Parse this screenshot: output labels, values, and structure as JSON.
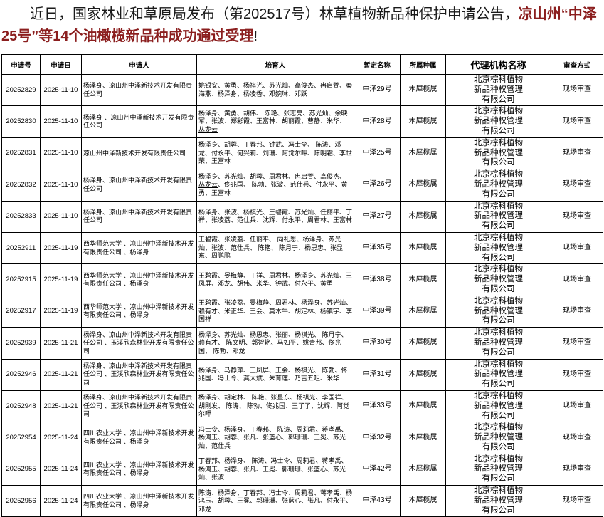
{
  "heading": {
    "black_prefix": "近日，国家林业和草原局发布（第202517号）林草植物新品种保护申请公告，",
    "red_text": "凉山州“中泽25号”等14个油橄榄新品种成功通过受理",
    "black_suffix": "!"
  },
  "table": {
    "columns": [
      "申请号",
      "申请日",
      "申请人",
      "培育人",
      "暂定名称",
      "所属种属",
      "代理机构名称",
      "审查方式"
    ],
    "underlined_names": [
      "丛龙云"
    ],
    "rows": [
      {
        "app_no": "20252829",
        "date": "2025-11-10",
        "applicant": "杨泽身、凉山州中泽新技术开发有限责任公司",
        "breeders": "姚银安、黄勇、杨祺光、苏光灿、高俊杰、冉启萱、秦海燕、杨泽身、杨凌香、邓婉琳、邓跃",
        "name": "中泽29号",
        "genus": "木犀榄属",
        "agency": "北京棕科植物\n新品种权管理\n有限公司",
        "method": "现场审查"
      },
      {
        "app_no": "20252830",
        "date": "2025-11-10",
        "applicant": "杨泽身 、凉山州中泽新技术开发有限责任公司",
        "breeders": "杨泽身、黄勇、胡伟、 陈艳、张志亮、苏光灿、余映军、张波、郑彩霞、王富林、胡丽霞、曹静、米华、丛龙云",
        "name": "中泽28号",
        "genus": "木犀榄属",
        "agency": "北京棕科植物\n新品种权管理\n有限公司",
        "method": "现场审查"
      },
      {
        "app_no": "20252831",
        "date": "2025-11-10",
        "applicant": "凉山州中泽新技术开发有限责任公司",
        "breeders": "杨泽身、胡蓉、丁春邦、钟武、冯士令、 陈涛、邓龙、付永平、何兴莉、刘珊、阿觉尔呷、陈明霜、李世荣、王富林",
        "name": "中泽25号",
        "genus": "木犀榄属",
        "agency": "北京棕科植物\n新品种权管理\n有限公司",
        "method": "现场审查"
      },
      {
        "app_no": "20252832",
        "date": "2025-11-10",
        "applicant": "杨泽身、凉山州中泽新技术开发有限责任公司",
        "breeders": "杨泽身、苏光灿、胡蓉、周君林、冉启萱、高俊杰、丛龙云、佟兆国、 陈勃、张波、范仕兵、付永平、黄勇、王富林",
        "name": "中泽26号",
        "genus": "木犀榄属",
        "agency": "北京棕科植物\n新品种权管理\n有限公司",
        "method": "现场审查"
      },
      {
        "app_no": "20252833",
        "date": "2025-11-10",
        "applicant": "杨泽身、凉山州中泽新技术开发有限责任公司",
        "breeders": "杨泽身、张波、杨祺光、王碧霞、苏光灿、任丽平、丁祥、张凌荔、范仕兵、沈辉、付永平、周君林、王富林",
        "name": "中泽27号",
        "genus": "木犀榄属",
        "agency": "北京棕科植物\n新品种权管理\n有限公司",
        "method": "现场审查"
      },
      {
        "app_no": "20252911",
        "date": "2025-11-19",
        "applicant": "西华师范大学 、凉山州中泽新技术开发有限责任公司 、杨泽身",
        "breeders": "王碧霞、张凌荔、任丽平、 向礼恩、杨泽身、苏光灿、张波、范仕兵、 陈艳、 陈月宁、杨思忠、张显东、周鹏鹏",
        "name": "中泽35号",
        "genus": "木犀榄属",
        "agency": "北京棕科植物\n新品种权管理\n有限公司",
        "method": "现场审查"
      },
      {
        "app_no": "20252915",
        "date": "2025-11-19",
        "applicant": "西华师范大学 、凉山州中泽新技术开发有限责任公司 、杨泽身",
        "breeders": "王碧霞、晏梅静、丁祥、周君林、杨泽身、苏光灿、王凤屏、邓龙、胡伟、米华、钟武、付永平、黄勇",
        "name": "中泽38号",
        "genus": "木犀榄属",
        "agency": "北京棕科植物\n新品种权管理\n有限公司",
        "method": "现场审查"
      },
      {
        "app_no": "20252917",
        "date": "2025-11-19",
        "applicant": "西华师范大学 、凉山州中泽新技术开发有限责任公司 、杨泽身",
        "breeders": "王碧霞、张凌荔、晏梅静、周君林、杨泽身、苏光灿、赖有才、米正华、王会、莫木牛、胡定林、杨镇宇、李国祥",
        "name": "中泽39号",
        "genus": "木犀榄属",
        "agency": "北京棕科植物\n新品种权管理\n有限公司",
        "method": "现场审查"
      },
      {
        "app_no": "20252939",
        "date": "2025-11-21",
        "applicant": "杨泽身、凉山州中泽新技术开发有限责任公司 、玉溪欣森林业开发有限责任公司",
        "breeders": "杨泽身、苏光灿、杨思忠、张丽、杨祺光、 陈月宁、赖有才、 陈文明、郭智艳、马如平、姚青邦、佟兆国、 陈勃、邓龙",
        "name": "中泽30号",
        "genus": "木犀榄属",
        "agency": "北京棕科植物\n新品种权管理\n有限公司",
        "method": "现场审查"
      },
      {
        "app_no": "20252946",
        "date": "2025-11-21",
        "applicant": "杨泽身、凉山州中泽新技术开发有限责任公司 、玉溪欣森林业开发有限责任公司",
        "breeders": "杨泽身、马静萍、王凤屏、王会、杨祺光、 陈勃、佟兆国、冯士令、龚大斌、朱育莲、乃吉五咀、米华",
        "name": "中泽31号",
        "genus": "木犀榄属",
        "agency": "北京棕科植物\n新品种权管理\n有限公司",
        "method": "现场审查"
      },
      {
        "app_no": "20252948",
        "date": "2025-11-21",
        "applicant": "杨泽身、凉山州中泽新技术开发有限责任公司 、玉溪欣森林业开发有限责任公司",
        "breeders": "杨泽身、胡定林、 陈艳、张显东、杨祺光、李国祥、胡刚发、 陈涛、 陈勃、佟兆国、王了了、沈辉、阿觉尔呷",
        "name": "中泽33号",
        "genus": "木犀榄属",
        "agency": "北京棕科植物\n新品种权管理\n有限公司",
        "method": "现场审查"
      },
      {
        "app_no": "20252954",
        "date": "2025-11-24",
        "applicant": "四川农业大学 、凉山州中泽新技术开发有限责任公司 、杨泽身",
        "breeders": "冯士令、杨泽身、丁春邦、 陈涛、周莉君、蒋孝禹、杨鸿玉、胡蓉、张凡、张蓝心、郭珊珊、王冕、苏光灿、范仕兵",
        "name": "中泽32号",
        "genus": "木犀榄属",
        "agency": "北京棕科植物\n新品种权管理\n有限公司",
        "method": "现场审查"
      },
      {
        "app_no": "20252955",
        "date": "2025-11-24",
        "applicant": "四川农业大学 、凉山州中泽新技术开发有限责任公司 、杨泽身",
        "breeders": "丁春邦、杨泽身、 陈涛、冯士令、周莉君、蒋孝禹、杨鸿玉、胡蓉、张凡、王冕、郭珊珊、张蓝心、苏光灿、张波",
        "name": "中泽42号",
        "genus": "木犀榄属",
        "agency": "北京棕科植物\n新品种权管理\n有限公司",
        "method": "现场审查"
      },
      {
        "app_no": "20252956",
        "date": "2025-11-24",
        "applicant": "四川农业大学 、凉山州中泽新技术开发有限责任公司 、杨泽身",
        "breeders": "陈涛、杨泽身、丁春邦、冯士令、周莉君、蒋孝禹、杨鸿玉、胡蓉、王冕、郭珊珊、张蓝心、张凡、付永平、邓龙",
        "name": "中泽43号",
        "genus": "木犀榄属",
        "agency": "北京棕科植物\n新品种权管理\n有限公司",
        "method": "现场审查"
      }
    ]
  }
}
